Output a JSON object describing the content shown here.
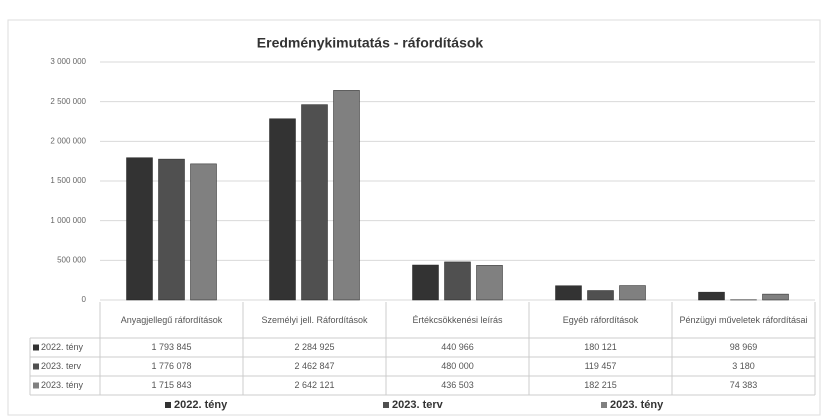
{
  "chart_data": {
    "type": "bar",
    "title": "Eredménykimutatás - ráfordítások",
    "categories": [
      "Anyagjellegű ráfordítások",
      "Személyi jell. Ráfordítások",
      "Értékcsökkenési leírás",
      "Egyéb ráfordítások",
      "Pénzügyi műveletek ráfordításai"
    ],
    "series": [
      {
        "name": "2022. tény",
        "color": "#333333",
        "values": [
          1793845,
          2284925,
          440966,
          180121,
          98969
        ],
        "value_labels": [
          "1 793 845",
          "2 284 925",
          "440 966",
          "180 121",
          "98 969"
        ]
      },
      {
        "name": "2023. terv",
        "color": "#505050",
        "values": [
          1776078,
          2462847,
          480000,
          119457,
          3180
        ],
        "value_labels": [
          "1 776 078",
          "2 462 847",
          "480 000",
          "119 457",
          "3 180"
        ]
      },
      {
        "name": "2023. tény",
        "color": "#808080",
        "values": [
          1715843,
          2642121,
          436503,
          182215,
          74383
        ],
        "value_labels": [
          "1 715 843",
          "2 642 121",
          "436 503",
          "182 215",
          "74 383"
        ]
      }
    ],
    "ylim": [
      0,
      3000000
    ],
    "yticks": [
      0,
      {
        "value": 500000,
        "label": "500 000"
      },
      {
        "value": 1000000,
        "label": "1 000 000"
      },
      {
        "value": 1500000,
        "label": "1 500 000"
      },
      {
        "value": 2000000,
        "label": "2 000 000"
      },
      {
        "value": 2500000,
        "label": "2 500 000"
      },
      {
        "value": 3000000,
        "label": "3 000 000"
      }
    ],
    "grid": true,
    "legend": "bottom"
  }
}
